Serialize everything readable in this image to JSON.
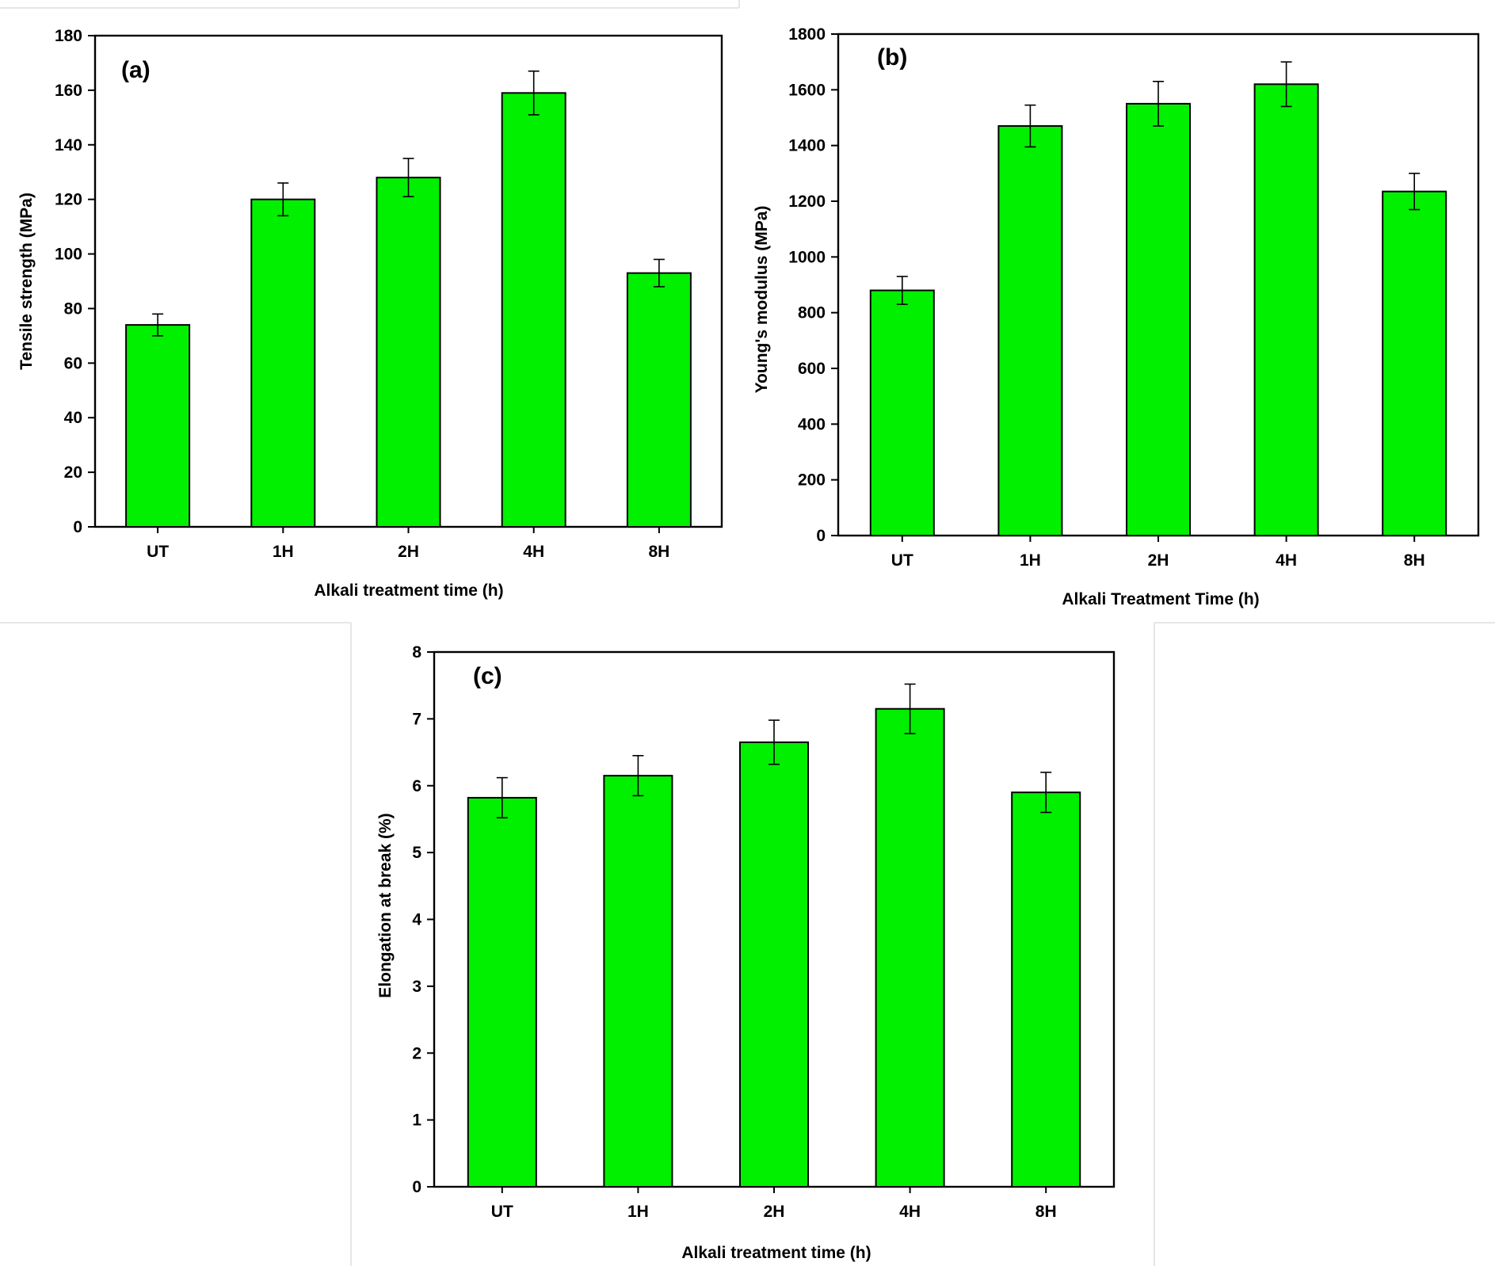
{
  "colors": {
    "bar_fill": "#00f000",
    "axis": "#000000",
    "background": "#ffffff"
  },
  "chart_data": [
    {
      "type": "bar",
      "panel_label": "(a)",
      "title": "",
      "xlabel": "Alkali treatment time (h)",
      "ylabel": "Tensile strength (MPa)",
      "categories": [
        "UT",
        "1H",
        "2H",
        "4H",
        "8H"
      ],
      "values": [
        74,
        120,
        128,
        159,
        93
      ],
      "errors": [
        4,
        6,
        7,
        8,
        5
      ],
      "ylim": [
        0,
        180
      ],
      "yticks": [
        0,
        20,
        40,
        60,
        80,
        100,
        120,
        140,
        160,
        180
      ],
      "grid": false,
      "legend": "none"
    },
    {
      "type": "bar",
      "panel_label": "(b)",
      "title": "",
      "xlabel": "Alkali Treatment Time (h)",
      "ylabel": "Young's modulus (MPa)",
      "categories": [
        "UT",
        "1H",
        "2H",
        "4H",
        "8H"
      ],
      "values": [
        880,
        1470,
        1550,
        1620,
        1235
      ],
      "errors": [
        50,
        75,
        80,
        80,
        65
      ],
      "ylim": [
        0,
        1800
      ],
      "yticks": [
        0,
        200,
        400,
        600,
        800,
        1000,
        1200,
        1400,
        1600,
        1800
      ],
      "grid": false,
      "legend": "none"
    },
    {
      "type": "bar",
      "panel_label": "(c)",
      "title": "",
      "xlabel": "Alkali treatment time (h)",
      "ylabel": "Elongation at break (%)",
      "categories": [
        "UT",
        "1H",
        "2H",
        "4H",
        "8H"
      ],
      "values": [
        5.82,
        6.15,
        6.65,
        7.15,
        5.9
      ],
      "errors": [
        0.3,
        0.3,
        0.33,
        0.37,
        0.3
      ],
      "ylim": [
        0,
        8
      ],
      "yticks": [
        0,
        1,
        2,
        3,
        4,
        5,
        6,
        7,
        8
      ],
      "grid": false,
      "legend": "none"
    }
  ]
}
